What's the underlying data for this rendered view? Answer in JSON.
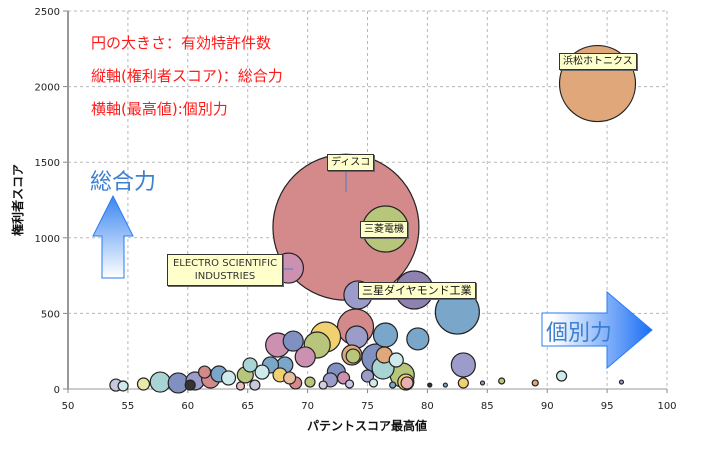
{
  "chart_data": {
    "type": "scatter",
    "subtype": "bubble",
    "xlabel": "パテントスコア最高値",
    "ylabel": "権利者スコア",
    "xlim": [
      50,
      100
    ],
    "ylim": [
      0,
      2500
    ],
    "xticks": [
      50,
      55,
      60,
      65,
      70,
      75,
      80,
      85,
      90,
      95,
      100
    ],
    "yticks": [
      0,
      500,
      1000,
      1500,
      2000,
      2500
    ],
    "grid": true,
    "size_meaning": "有効特許件数",
    "annotations": [
      "円の大きさ：有効特許件数",
      "縦軸(権利者スコア)：総合力",
      "横軸(最高値):個別力"
    ],
    "arrow_labels": {
      "vertical": "総合力",
      "horizontal": "個別力"
    },
    "labeled_points": [
      {
        "name": "浜松ホトニクス",
        "index": 0
      },
      {
        "name": "ディスコ",
        "index": 1
      },
      {
        "name": "三菱電機",
        "index": 2
      },
      {
        "name": "ELECTRO SCIENTIFIC INDUSTRIES",
        "index": 3
      },
      {
        "name": "三星ダイヤモンド工業",
        "index": 4
      }
    ],
    "points": [
      {
        "x": 94.2,
        "y": 2020,
        "size": 1444,
        "color": "#e0a87a"
      },
      {
        "x": 73.2,
        "y": 1070,
        "size": 5329,
        "color": "#d48a8a"
      },
      {
        "x": 76.5,
        "y": 1058,
        "size": 529,
        "color": "#b8c67c"
      },
      {
        "x": 68.4,
        "y": 800,
        "size": 225,
        "color": "#cc90b0"
      },
      {
        "x": 78.9,
        "y": 655,
        "size": 361,
        "color": "#8f82b0"
      },
      {
        "x": 74.2,
        "y": 622,
        "size": 196,
        "color": "#9c9cca"
      },
      {
        "x": 82.5,
        "y": 509,
        "size": 484,
        "color": "#7aa7c9"
      },
      {
        "x": 74.0,
        "y": 410,
        "size": 324,
        "color": "#d48a8a"
      },
      {
        "x": 71.5,
        "y": 344,
        "size": 225,
        "color": "#f0d070"
      },
      {
        "x": 74.1,
        "y": 344,
        "size": 121,
        "color": "#9c9cca"
      },
      {
        "x": 76.5,
        "y": 357,
        "size": 144,
        "color": "#7aa7c9"
      },
      {
        "x": 79.2,
        "y": 331,
        "size": 121,
        "color": "#7aa7c9"
      },
      {
        "x": 70.8,
        "y": 291,
        "size": 169,
        "color": "#b8c67c"
      },
      {
        "x": 67.5,
        "y": 291,
        "size": 144,
        "color": "#cc90b0"
      },
      {
        "x": 68.8,
        "y": 317,
        "size": 100,
        "color": "#8090c0"
      },
      {
        "x": 83.0,
        "y": 159,
        "size": 144,
        "color": "#9c9cca"
      },
      {
        "x": 75.7,
        "y": 205,
        "size": 196,
        "color": "#8090c0"
      },
      {
        "x": 76.3,
        "y": 139,
        "size": 121,
        "color": "#a8d4d4"
      },
      {
        "x": 76.4,
        "y": 225,
        "size": 64,
        "color": "#e0a87a"
      },
      {
        "x": 73.7,
        "y": 225,
        "size": 100,
        "color": "#e0a87a"
      },
      {
        "x": 73.8,
        "y": 218,
        "size": 49,
        "color": "#b8c67c"
      },
      {
        "x": 77.4,
        "y": 192,
        "size": 49,
        "color": "#cfeaea"
      },
      {
        "x": 77.9,
        "y": 93,
        "size": 144,
        "color": "#b8c67c"
      },
      {
        "x": 78.2,
        "y": 46,
        "size": 64,
        "color": "#f0d070"
      },
      {
        "x": 78.3,
        "y": 40,
        "size": 36,
        "color": "#e8b0b0"
      },
      {
        "x": 69.8,
        "y": 212,
        "size": 100,
        "color": "#cc90b0"
      },
      {
        "x": 68.1,
        "y": 159,
        "size": 64,
        "color": "#7aa7c9"
      },
      {
        "x": 57.7,
        "y": 46,
        "size": 100,
        "color": "#a8d4d4"
      },
      {
        "x": 59.2,
        "y": 40,
        "size": 100,
        "color": "#8090c0"
      },
      {
        "x": 60.6,
        "y": 53,
        "size": 81,
        "color": "#9c9cca"
      },
      {
        "x": 61.9,
        "y": 66,
        "size": 81,
        "color": "#d48a8a"
      },
      {
        "x": 62.6,
        "y": 99,
        "size": 64,
        "color": "#7aa7c9"
      },
      {
        "x": 63.4,
        "y": 73,
        "size": 49,
        "color": "#cfeaea"
      },
      {
        "x": 54.0,
        "y": 26,
        "size": 36,
        "color": "#c8c8dc"
      },
      {
        "x": 54.6,
        "y": 20,
        "size": 25,
        "color": "#cfeaea"
      },
      {
        "x": 56.3,
        "y": 33,
        "size": 36,
        "color": "#e8e8a8"
      },
      {
        "x": 66.2,
        "y": 112,
        "size": 49,
        "color": "#cfeaea"
      },
      {
        "x": 66.9,
        "y": 159,
        "size": 64,
        "color": "#7aa7c9"
      },
      {
        "x": 67.7,
        "y": 93,
        "size": 49,
        "color": "#f0d070"
      },
      {
        "x": 64.8,
        "y": 93,
        "size": 64,
        "color": "#b8c67c"
      },
      {
        "x": 69.0,
        "y": 40,
        "size": 36,
        "color": "#d48a8a"
      },
      {
        "x": 72.4,
        "y": 112,
        "size": 81,
        "color": "#8090c0"
      },
      {
        "x": 71.9,
        "y": 60,
        "size": 49,
        "color": "#9c9cca"
      },
      {
        "x": 73.0,
        "y": 73,
        "size": 36,
        "color": "#cc90b0"
      },
      {
        "x": 70.2,
        "y": 46,
        "size": 25,
        "color": "#b8c67c"
      },
      {
        "x": 75.0,
        "y": 86,
        "size": 36,
        "color": "#9c9cca"
      },
      {
        "x": 75.5,
        "y": 40,
        "size": 16,
        "color": "#cfeaea"
      },
      {
        "x": 77.1,
        "y": 26,
        "size": 9,
        "color": "#7aa7c9"
      },
      {
        "x": 80.2,
        "y": 26,
        "size": 4,
        "color": "#333333"
      },
      {
        "x": 81.5,
        "y": 26,
        "size": 4,
        "color": "#7aa7c9"
      },
      {
        "x": 83.0,
        "y": 40,
        "size": 25,
        "color": "#f0d070"
      },
      {
        "x": 84.6,
        "y": 40,
        "size": 4,
        "color": "#9c9cca"
      },
      {
        "x": 86.2,
        "y": 53,
        "size": 9,
        "color": "#b8c67c"
      },
      {
        "x": 89.0,
        "y": 40,
        "size": 9,
        "color": "#e0a87a"
      },
      {
        "x": 91.2,
        "y": 86,
        "size": 25,
        "color": "#cfeaea"
      },
      {
        "x": 96.2,
        "y": 46,
        "size": 4,
        "color": "#9c9cca"
      },
      {
        "x": 61.4,
        "y": 112,
        "size": 36,
        "color": "#d48a8a"
      },
      {
        "x": 60.2,
        "y": 26,
        "size": 25,
        "color": "#333333"
      },
      {
        "x": 65.6,
        "y": 26,
        "size": 25,
        "color": "#c8c8dc"
      },
      {
        "x": 64.4,
        "y": 20,
        "size": 16,
        "color": "#e8c0c0"
      },
      {
        "x": 71.3,
        "y": 26,
        "size": 16,
        "color": "#d0d0e0"
      },
      {
        "x": 65.2,
        "y": 159,
        "size": 49,
        "color": "#a8d4d4"
      },
      {
        "x": 68.5,
        "y": 73,
        "size": 36,
        "color": "#e8c0a0"
      },
      {
        "x": 73.5,
        "y": 33,
        "size": 16,
        "color": "#c8c8e8"
      }
    ]
  }
}
